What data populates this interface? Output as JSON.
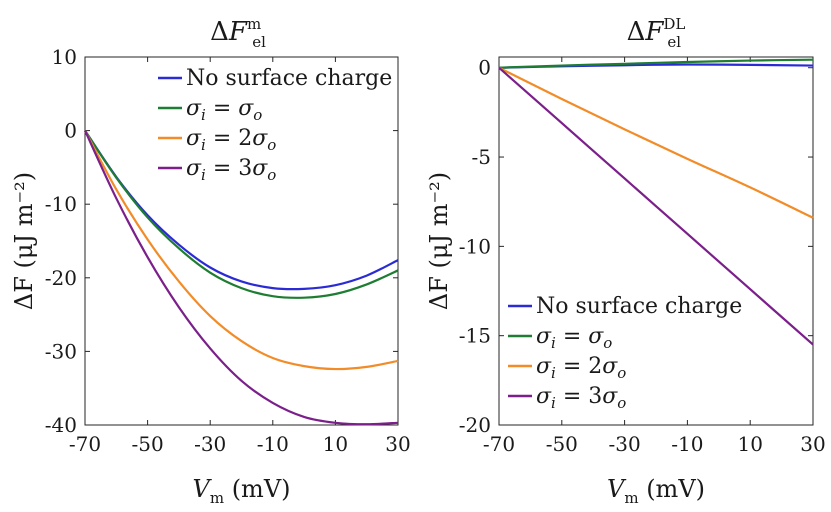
{
  "chart_data": [
    {
      "type": "line",
      "title_base": "ΔF",
      "title_sub": "el",
      "title_sup": "m",
      "xlabel_var": "V",
      "xlabel_sub": "m",
      "xlabel_unit": "(mV)",
      "ylabel": "ΔF (μJ m⁻²)",
      "xlim": [
        -70,
        30
      ],
      "ylim": [
        -40,
        10
      ],
      "xticks": [
        -70,
        -50,
        -30,
        -10,
        10,
        30
      ],
      "yticks": [
        10,
        0,
        -10,
        -20,
        -30,
        -40
      ],
      "xtick_labels": [
        "-70",
        "-50",
        "-30",
        "-10",
        "10",
        "30"
      ],
      "ytick_labels": [
        "10",
        "0",
        "-10",
        "-20",
        "-30",
        "-40"
      ],
      "legend_position": "top-right",
      "series": [
        {
          "name": "No surface charge",
          "color": "#2b2bd6",
          "x": [
            -70,
            -60,
            -50,
            -40,
            -30,
            -20,
            -10,
            0,
            10,
            20,
            30
          ],
          "values": [
            0,
            -6.3,
            -11.5,
            -15.5,
            -18.6,
            -20.5,
            -21.4,
            -21.5,
            -21.0,
            -19.7,
            -17.6
          ]
        },
        {
          "name": "σi = σo",
          "color": "#1e7d32",
          "x": [
            -70,
            -60,
            -50,
            -40,
            -30,
            -20,
            -10,
            0,
            10,
            20,
            30
          ],
          "values": [
            0,
            -6.4,
            -11.8,
            -16.0,
            -19.3,
            -21.4,
            -22.5,
            -22.7,
            -22.2,
            -20.9,
            -19.0
          ]
        },
        {
          "name": "σi = 2σo",
          "color": "#f28c28",
          "x": [
            -70,
            -60,
            -50,
            -40,
            -30,
            -20,
            -10,
            0,
            10,
            20,
            30
          ],
          "values": [
            0,
            -8.0,
            -14.8,
            -20.5,
            -25.2,
            -28.6,
            -30.9,
            -32.0,
            -32.4,
            -32.1,
            -31.3
          ]
        },
        {
          "name": "σi = 3σo",
          "color": "#7b1f8a",
          "x": [
            -70,
            -60,
            -50,
            -40,
            -30,
            -20,
            -10,
            0,
            10,
            20,
            30
          ],
          "values": [
            0,
            -9.2,
            -17.2,
            -24.0,
            -29.6,
            -34.0,
            -37.0,
            -38.9,
            -39.7,
            -39.9,
            -39.7
          ]
        }
      ]
    },
    {
      "type": "line",
      "title_base": "ΔF",
      "title_sub": "el",
      "title_sup": "DL",
      "xlabel_var": "V",
      "xlabel_sub": "m",
      "xlabel_unit": "(mV)",
      "ylabel": "ΔF (μJ m⁻²)",
      "xlim": [
        -70,
        30
      ],
      "ylim": [
        -20,
        0.6
      ],
      "xticks": [
        -70,
        -50,
        -30,
        -10,
        10,
        30
      ],
      "yticks": [
        0,
        -5,
        -10,
        -15,
        -20
      ],
      "xtick_labels": [
        "-70",
        "-50",
        "-30",
        "-10",
        "10",
        "30"
      ],
      "ytick_labels": [
        "0",
        "-5",
        "-10",
        "-15",
        "-20"
      ],
      "legend_position": "bottom-left",
      "series": [
        {
          "name": "No surface charge",
          "color": "#2b2bd6",
          "x": [
            -70,
            -50,
            -30,
            -10,
            10,
            30
          ],
          "values": [
            0,
            0.08,
            0.14,
            0.18,
            0.16,
            0.12
          ]
        },
        {
          "name": "σi = σo",
          "color": "#1e7d32",
          "x": [
            -70,
            -50,
            -30,
            -10,
            10,
            30
          ],
          "values": [
            0,
            0.12,
            0.22,
            0.32,
            0.4,
            0.45
          ]
        },
        {
          "name": "σi = 2σo",
          "color": "#f28c28",
          "x": [
            -70,
            -50,
            -30,
            -10,
            10,
            30
          ],
          "values": [
            0,
            -1.75,
            -3.45,
            -5.1,
            -6.7,
            -8.4
          ]
        },
        {
          "name": "σi = 3σo",
          "color": "#7b1f8a",
          "x": [
            -70,
            -50,
            -30,
            -10,
            10,
            30
          ],
          "values": [
            0,
            -3.1,
            -6.2,
            -9.3,
            -12.4,
            -15.5
          ]
        }
      ]
    }
  ]
}
